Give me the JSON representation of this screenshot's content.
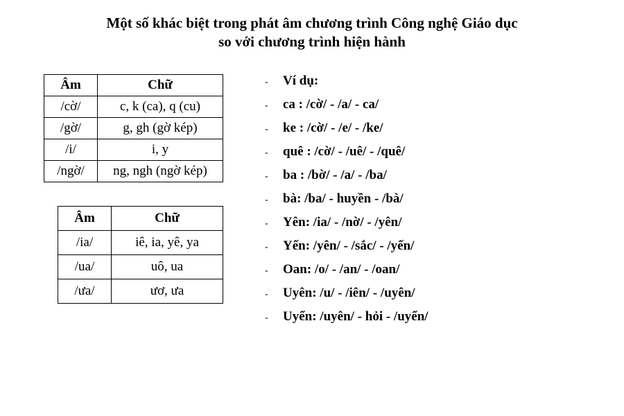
{
  "title_line1": "Một số khác biệt trong phát âm chương trình Công nghệ Giáo dục",
  "title_line2": "so với chương trình hiện hành",
  "table1": {
    "headers": {
      "am": "Âm",
      "chu": "Chữ"
    },
    "rows": [
      {
        "am": "/cờ/",
        "chu": "c, k (ca), q (cu)"
      },
      {
        "am": "/gờ/",
        "chu": "g, gh (gờ kép)"
      },
      {
        "am": "/i/",
        "chu": "i, y"
      },
      {
        "am": "/ngờ/",
        "chu": "ng, ngh (ngờ kép)"
      }
    ]
  },
  "table2": {
    "headers": {
      "am": "Âm",
      "chu": "Chữ"
    },
    "rows": [
      {
        "am": "/ia/",
        "chu": "iê, ia, yê, ya"
      },
      {
        "am": "/ua/",
        "chu": "uô, ua"
      },
      {
        "am": "/ưa/",
        "chu": "ươ, ưa"
      }
    ]
  },
  "examples": {
    "heading": "Ví dụ:",
    "items": [
      "ca : /cờ/ - /a/ - ca/",
      "ke : /cờ/ - /e/ - /ke/",
      "quê : /cờ/ - /uê/ - /quê/",
      "ba : /bờ/ - /a/ - /ba/",
      "bà: /ba/ - huyền - /bà/",
      "Yên: /ia/ - /nờ/ - /yên/",
      "Yến: /yên/ - /sắc/ - /yến/",
      "Oan: /o/ - /an/ - /oan/",
      "Uyên: /u/ - /iên/ - /uyên/",
      "Uyển: /uyên/ - hỏi - /uyển/"
    ]
  }
}
